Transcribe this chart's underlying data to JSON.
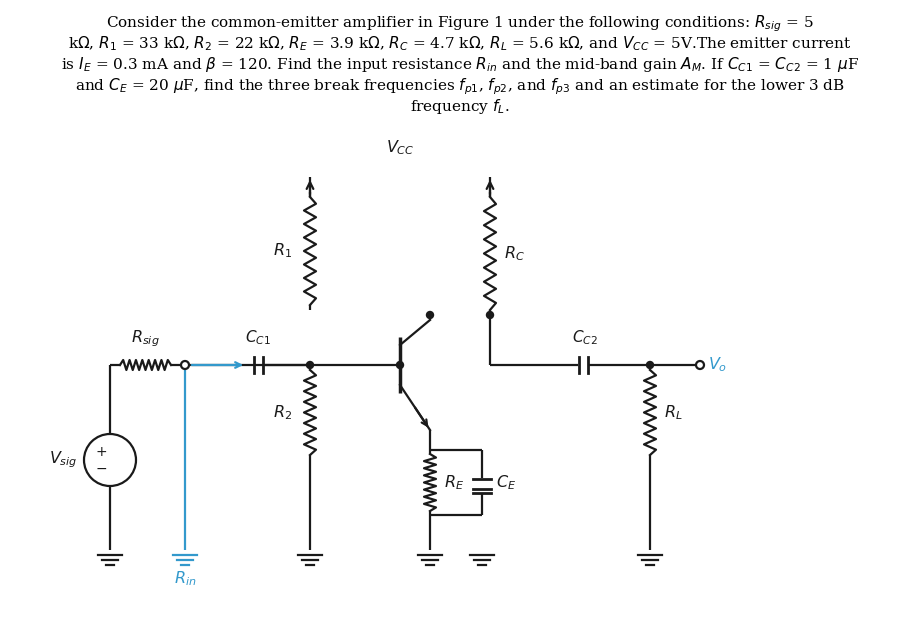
{
  "bg_color": "#ffffff",
  "text_color": "#000000",
  "cc": "#1a1a1a",
  "blue": "#3399cc",
  "header_fontsize": 11.0,
  "label_fontsize": 11.5,
  "lw": 1.6,
  "fig_w": 9.19,
  "fig_h": 6.29,
  "dpi": 100,
  "header_lines": [
    "Consider the common-emitter amplifier in Figure 1 under the following conditions: $R_{sig}$ = 5",
    "k$\\Omega$, $R_1$ = 33 k$\\Omega$, $R_2$ = 22 k$\\Omega$, $R_E$ = 3.9 k$\\Omega$, $R_C$ = 4.7 k$\\Omega$, $R_L$ = 5.6 k$\\Omega$, and $V_{CC}$ = 5V.The emitter current",
    "is $I_E$ = 0.3 mA and $\\beta$ = 120. Find the input resistance $R_{in}$ and the mid-band gain $A_M$. If $C_{C1}$ = $C_{C2}$ = 1 $\\mu$F",
    "and $C_E$ = 20 $\\mu$F, find the three break frequencies $f_{p1}$, $f_{p2}$, and $f_{p3}$ and an estimate for the lower 3 dB",
    "frequency $f_L$."
  ]
}
